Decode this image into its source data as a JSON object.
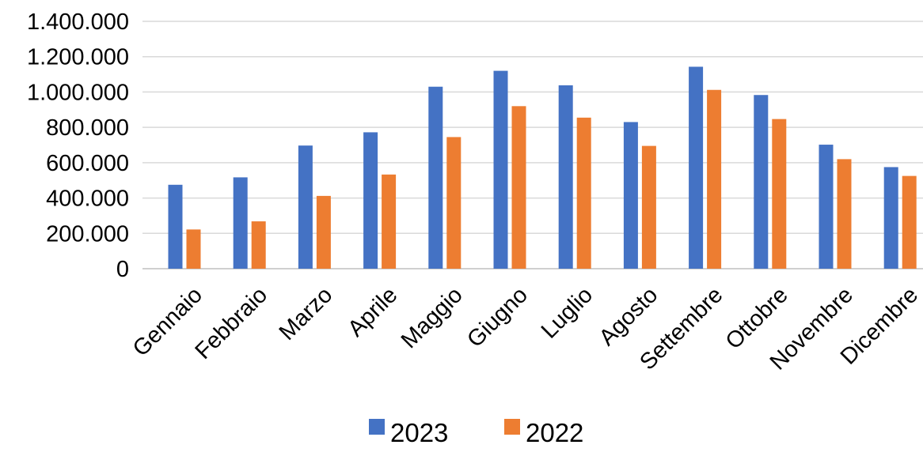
{
  "chart_data": {
    "type": "bar",
    "categories": [
      "Gennaio",
      "Febbraio",
      "Marzo",
      "Aprile",
      "Maggio",
      "Giugno",
      "Luglio",
      "Agosto",
      "Settembre",
      "Ottobre",
      "Novembre",
      "Dicembre"
    ],
    "series": [
      {
        "name": "2023",
        "color": "#4472c4",
        "values": [
          475000,
          517000,
          697000,
          772000,
          1030000,
          1120000,
          1038000,
          830000,
          1143000,
          983000,
          702000,
          575000
        ]
      },
      {
        "name": "2022",
        "color": "#ed7d31",
        "values": [
          222000,
          268000,
          412000,
          533000,
          745000,
          920000,
          855000,
          695000,
          1012000,
          847000,
          620000,
          525000
        ]
      }
    ],
    "ylim": [
      0,
      1400000
    ],
    "y_ticks": [
      "0",
      "200.000",
      "400.000",
      "600.000",
      "800.000",
      "1.000.000",
      "1.200.000",
      "1.400.000"
    ],
    "grid": true,
    "legend_position": "bottom",
    "title": "",
    "xlabel": "",
    "ylabel": ""
  }
}
